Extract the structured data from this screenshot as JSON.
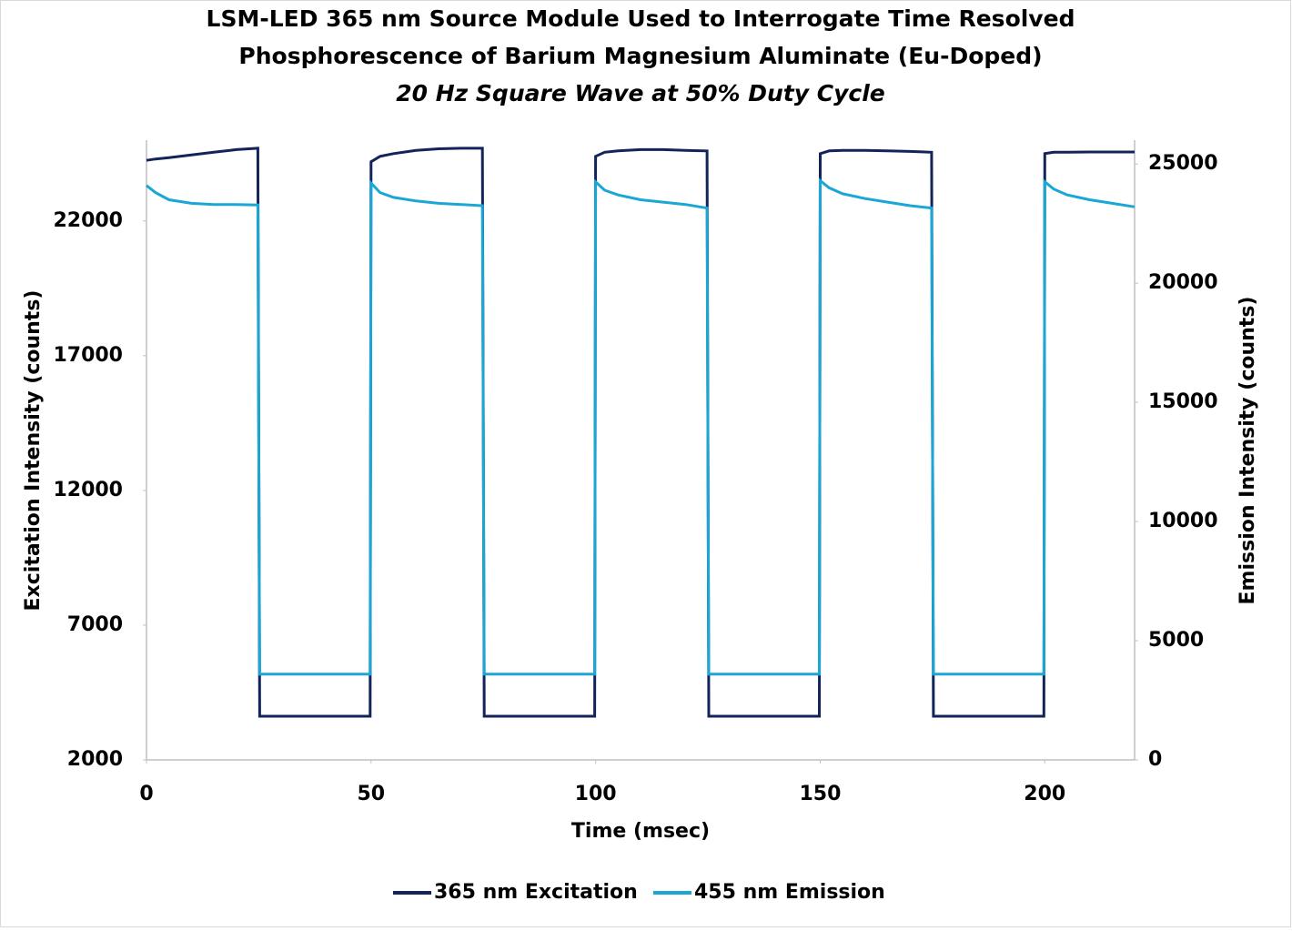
{
  "chart_data": {
    "type": "line",
    "title": [
      "LSM-LED 365 nm Source Module Used to Interrogate Time Resolved",
      "Phosphorescence of Barium Magnesium Aluminate (Eu-Doped)"
    ],
    "subtitle": "20 Hz Square Wave at 50% Duty Cycle",
    "x_label": "Time (msec)",
    "y_label": "Excitation Intensity (counts)",
    "y2_label": "Emission Intensity (counts)",
    "x": [
      0,
      2,
      5,
      10,
      15,
      20,
      24.8,
      25.2,
      49.8,
      50,
      52,
      55,
      60,
      65,
      70,
      74.8,
      75.2,
      99.8,
      100,
      102,
      105,
      110,
      115,
      120,
      124.8,
      125.2,
      149.8,
      150,
      152,
      155,
      160,
      165,
      170,
      174.8,
      175.2,
      199.8,
      200,
      202,
      205,
      210,
      215,
      220
    ],
    "xlim": [
      0,
      220
    ],
    "xticks": [
      0,
      50,
      100,
      150,
      200
    ],
    "ylim": [
      2000,
      25000
    ],
    "yticks": [
      2000,
      7000,
      12000,
      17000,
      22000
    ],
    "y2lim": [
      0,
      26000
    ],
    "y2ticks": [
      0,
      5000,
      10000,
      15000,
      20000,
      25000
    ],
    "legend": "bottom",
    "series": [
      {
        "name": "365 nm Excitation",
        "color": "#13245a",
        "axis": "y",
        "values": [
          24250,
          24300,
          24350,
          24450,
          24550,
          24650,
          24700,
          3620,
          3620,
          24200,
          24400,
          24500,
          24620,
          24680,
          24700,
          24700,
          3620,
          3620,
          24400,
          24550,
          24600,
          24650,
          24650,
          24620,
          24600,
          3620,
          3620,
          24500,
          24600,
          24620,
          24620,
          24600,
          24580,
          24550,
          3620,
          3620,
          24500,
          24550,
          24550,
          24560,
          24560,
          24560
        ]
      },
      {
        "name": "455 nm Emission",
        "color": "#1aa7d6",
        "axis": "y2",
        "values": [
          24100,
          23800,
          23500,
          23350,
          23300,
          23300,
          23280,
          3600,
          3600,
          24200,
          23800,
          23600,
          23450,
          23350,
          23300,
          23250,
          3600,
          3600,
          24250,
          23900,
          23700,
          23500,
          23400,
          23300,
          23150,
          3600,
          3600,
          24300,
          24000,
          23750,
          23550,
          23400,
          23250,
          23150,
          3600,
          3600,
          24250,
          23950,
          23700,
          23500,
          23350,
          23200
        ]
      }
    ]
  }
}
